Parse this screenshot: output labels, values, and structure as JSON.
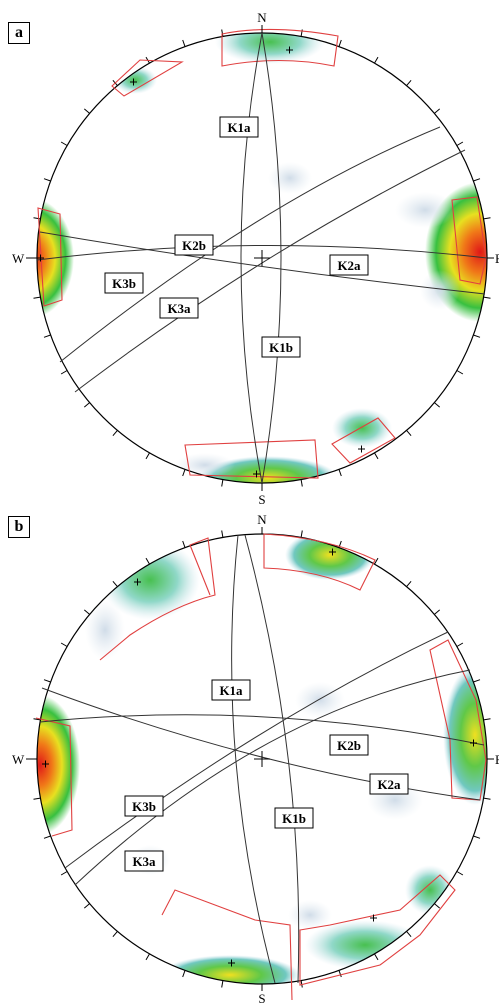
{
  "panels": [
    {
      "tag": "a",
      "compass": {
        "north": "N",
        "south": "S",
        "west": "W",
        "east": "E"
      },
      "labels": {
        "K1a": "K1a",
        "K1b": "K1b",
        "K2a": "K2a",
        "K2b": "K2b",
        "K3a": "K3a",
        "K3b": "K3b"
      },
      "colors": {
        "circle": "#000000",
        "plane": "#333333",
        "window": "#e04040"
      }
    },
    {
      "tag": "b",
      "compass": {
        "north": "N",
        "south": "S",
        "west": "W",
        "east": "E"
      },
      "labels": {
        "K1a": "K1a",
        "K1b": "K1b",
        "K2a": "K2a",
        "K2b": "K2b",
        "K3a": "K3a",
        "K3b": "K3b"
      },
      "colors": {
        "circle": "#000000",
        "plane": "#333333",
        "window": "#e04040"
      }
    }
  ]
}
